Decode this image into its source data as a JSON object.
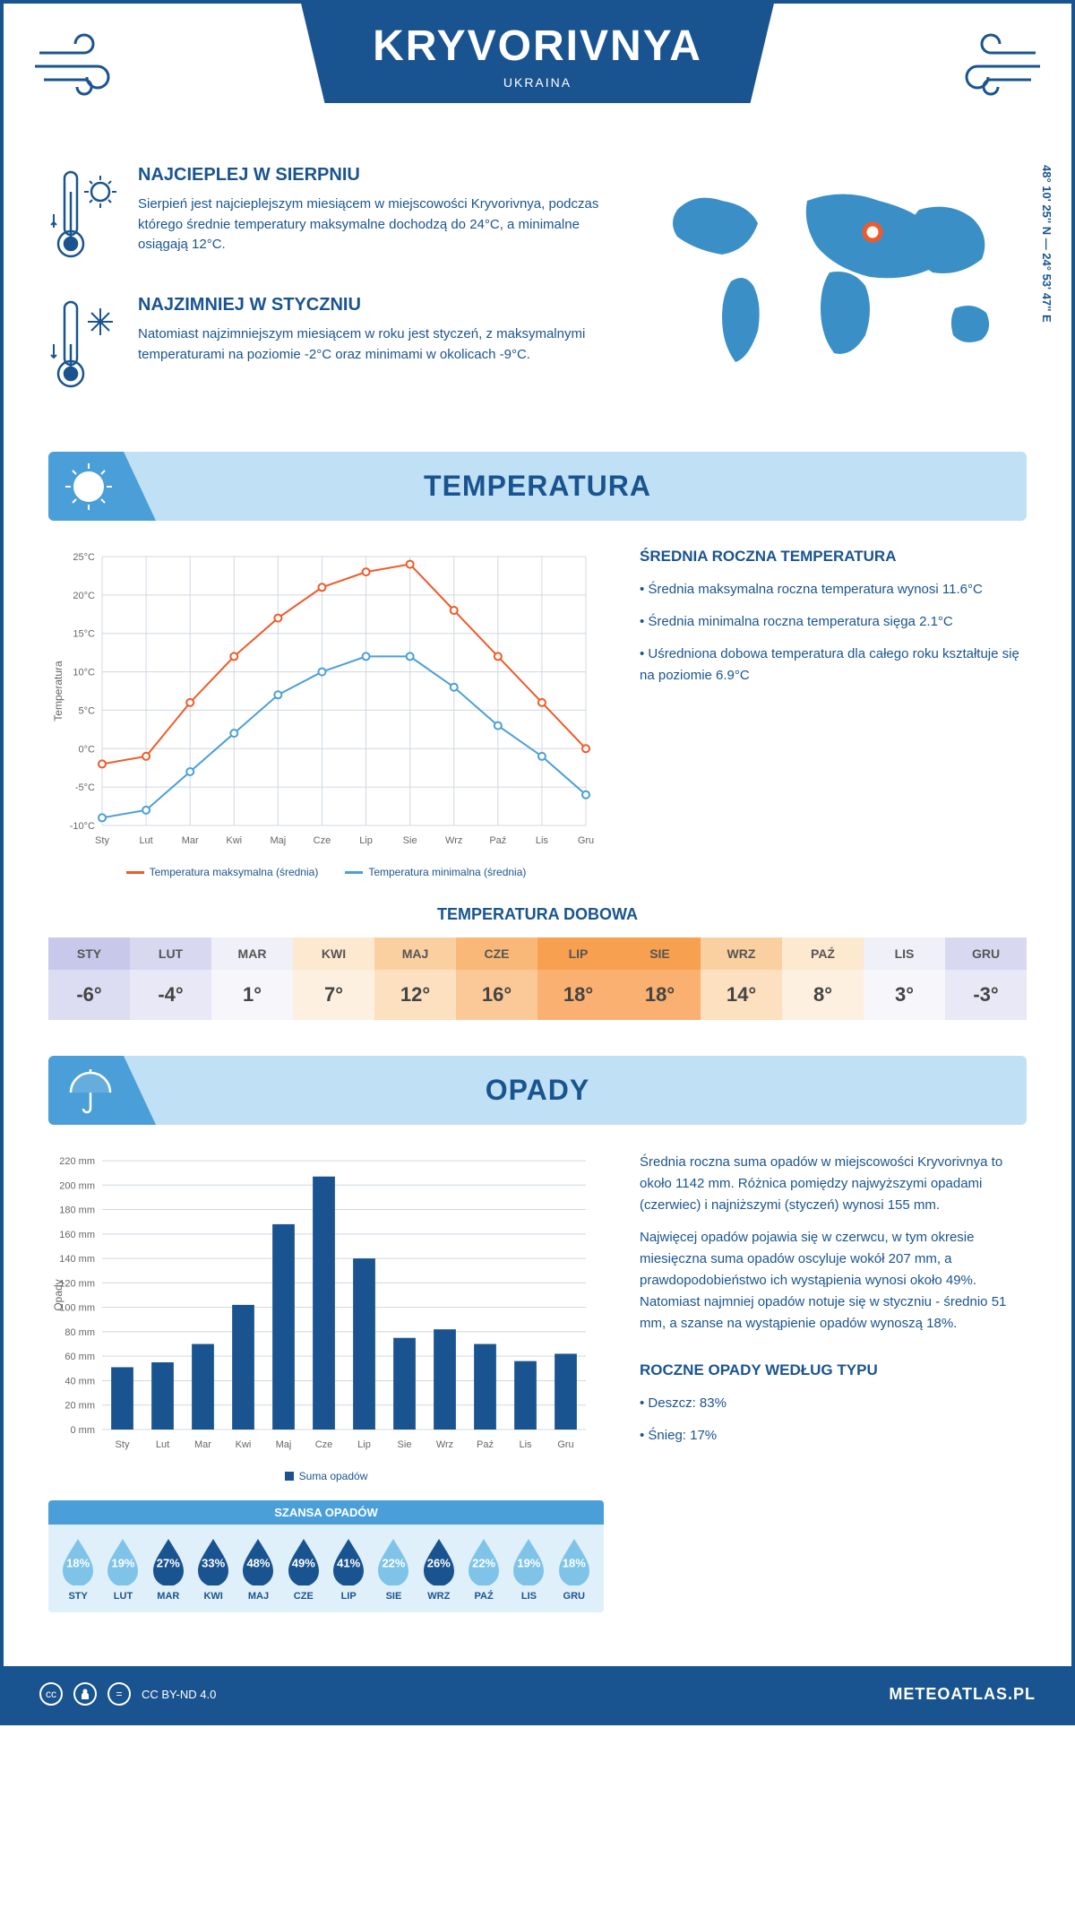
{
  "header": {
    "title": "KRYVORIVNYA",
    "subtitle": "UKRAINA"
  },
  "coords": "48° 10' 25'' N — 24° 53' 47'' E",
  "warmest": {
    "title": "NAJCIEPLEJ W SIERPNIU",
    "text": "Sierpień jest najcieplejszym miesiącem w miejscowości Kryvorivnya, podczas którego średnie temperatury maksymalne dochodzą do 24°C, a minimalne osiągają 12°C."
  },
  "coldest": {
    "title": "NAJZIMNIEJ W STYCZNIU",
    "text": "Natomiast najzimniejszym miesiącem w roku jest styczeń, z maksymalnymi temperaturami na poziomie -2°C oraz minimami w okolicach -9°C."
  },
  "temperature": {
    "section_title": "TEMPERATURA",
    "annual_title": "ŚREDNIA ROCZNA TEMPERATURA",
    "bullets": [
      "• Średnia maksymalna roczna temperatura wynosi 11.6°C",
      "• Średnia minimalna roczna temperatura sięga 2.1°C",
      "• Uśredniona dobowa temperatura dla całego roku kształtuje się na poziomie 6.9°C"
    ],
    "chart": {
      "type": "line",
      "months": [
        "Sty",
        "Lut",
        "Mar",
        "Kwi",
        "Maj",
        "Cze",
        "Lip",
        "Sie",
        "Wrz",
        "Paź",
        "Lis",
        "Gru"
      ],
      "y_label": "Temperatura",
      "y_ticks": [
        -10,
        -5,
        0,
        5,
        10,
        15,
        20,
        25
      ],
      "y_tick_labels": [
        "-10°C",
        "-5°C",
        "0°C",
        "5°C",
        "10°C",
        "15°C",
        "20°C",
        "25°C"
      ],
      "ylim": [
        -10,
        25
      ],
      "max_color": "#f05a28",
      "min_color": "#4a9fd8",
      "grid_color": "#d0d8e0",
      "line_width": 2,
      "marker_size": 4,
      "series": {
        "max": {
          "label": "Temperatura maksymalna (średnia)",
          "values": [
            -2,
            -1,
            6,
            12,
            17,
            21,
            23,
            24,
            18,
            12,
            6,
            0
          ]
        },
        "min": {
          "label": "Temperatura minimalna (średnia)",
          "values": [
            -9,
            -8,
            -3,
            2,
            7,
            10,
            12,
            12,
            8,
            3,
            -1,
            -6
          ]
        }
      }
    },
    "daily_title": "TEMPERATURA DOBOWA",
    "daily": {
      "months": [
        "STY",
        "LUT",
        "MAR",
        "KWI",
        "MAJ",
        "CZE",
        "LIP",
        "SIE",
        "WRZ",
        "PAŹ",
        "LIS",
        "GRU"
      ],
      "values": [
        "-6°",
        "-4°",
        "1°",
        "7°",
        "12°",
        "16°",
        "18°",
        "18°",
        "14°",
        "8°",
        "3°",
        "-3°"
      ],
      "head_colors": [
        "#c8c8ea",
        "#d8d8f0",
        "#f0f0f8",
        "#fde8d0",
        "#fbd0a0",
        "#f9b878",
        "#f7a050",
        "#f7a050",
        "#fbd0a0",
        "#fde8d0",
        "#f0f0f8",
        "#d8d8f0"
      ],
      "cell_colors": [
        "#dcdcf2",
        "#e8e8f6",
        "#f6f6fb",
        "#fef0e0",
        "#fce0c0",
        "#fbc898",
        "#f9b070",
        "#f9b070",
        "#fce0c0",
        "#fef0e0",
        "#f6f6fb",
        "#e8e8f6"
      ]
    }
  },
  "precipitation": {
    "section_title": "OPADY",
    "text1": "Średnia roczna suma opadów w miejscowości Kryvorivnya to około 1142 mm. Różnica pomiędzy najwyższymi opadami (czerwiec) i najniższymi (styczeń) wynosi 155 mm.",
    "text2": "Najwięcej opadów pojawia się w czerwcu, w tym okresie miesięczna suma opadów oscyluje wokół 207 mm, a prawdopodobieństwo ich wystąpienia wynosi około 49%. Natomiast najmniej opadów notuje się w styczniu - średnio 51 mm, a szanse na wystąpienie opadów wynoszą 18%.",
    "chart": {
      "type": "bar",
      "months": [
        "Sty",
        "Lut",
        "Mar",
        "Kwi",
        "Maj",
        "Cze",
        "Lip",
        "Sie",
        "Wrz",
        "Paź",
        "Lis",
        "Gru"
      ],
      "y_label": "Opady",
      "values": [
        51,
        55,
        70,
        102,
        168,
        207,
        140,
        75,
        82,
        70,
        56,
        62
      ],
      "bar_color": "#1a5490",
      "ylim": [
        0,
        220
      ],
      "y_ticks": [
        0,
        20,
        40,
        60,
        80,
        100,
        120,
        140,
        160,
        180,
        200,
        220
      ],
      "y_tick_labels": [
        "0 mm",
        "20 mm",
        "40 mm",
        "60 mm",
        "80 mm",
        "100 mm",
        "120 mm",
        "140 mm",
        "160 mm",
        "180 mm",
        "200 mm",
        "220 mm"
      ],
      "grid_color": "#d0d8e0",
      "legend_label": "Suma opadów",
      "bar_width": 0.55
    },
    "chance": {
      "title": "SZANSA OPADÓW",
      "months": [
        "STY",
        "LUT",
        "MAR",
        "KWI",
        "MAJ",
        "CZE",
        "LIP",
        "SIE",
        "WRZ",
        "PAŹ",
        "LIS",
        "GRU"
      ],
      "values": [
        "18%",
        "19%",
        "27%",
        "33%",
        "48%",
        "49%",
        "41%",
        "22%",
        "26%",
        "22%",
        "19%",
        "18%"
      ],
      "colors": [
        "#7fc4e8",
        "#7fc4e8",
        "#1a5490",
        "#1a5490",
        "#1a5490",
        "#1a5490",
        "#1a5490",
        "#7fc4e8",
        "#1a5490",
        "#7fc4e8",
        "#7fc4e8",
        "#7fc4e8"
      ]
    },
    "by_type": {
      "title": "ROCZNE OPADY WEDŁUG TYPU",
      "items": [
        "• Deszcz: 83%",
        "• Śnieg: 17%"
      ]
    }
  },
  "footer": {
    "license": "CC BY-ND 4.0",
    "site": "METEOATLAS.PL"
  }
}
